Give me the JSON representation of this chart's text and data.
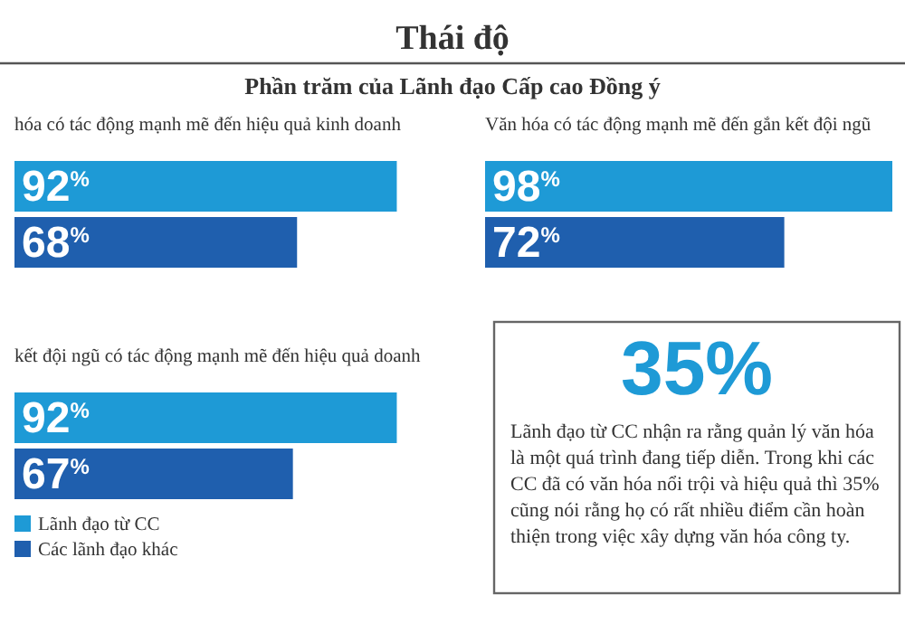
{
  "chart_data": [
    {
      "type": "other",
      "title": "Thái độ",
      "subtitle": "Phần trăm của Lãnh đạo Cấp cao Đồng ý"
    },
    {
      "type": "bar",
      "orientation": "horizontal",
      "title": "hóa có tác động mạnh mẽ đến hiệu quả kinh doanh",
      "categories": [
        null
      ],
      "tick_labels": false,
      "series": [
        {
          "color": "#1e9ad6",
          "values": [
            92
          ],
          "value_labels": [
            "92$^{%}$"
          ]
        },
        {
          "color": "#1f5fae",
          "values": [
            68
          ],
          "value_labels": [
            "68$^{%}$"
          ]
        }
      ]
    },
    {
      "type": "bar",
      "orientation": "horizontal",
      "title": "Văn hóa có tác động mạnh mẽ đến gắn kết đội ngũ",
      "categories": [
        null
      ],
      "tick_labels": false,
      "series": [
        {
          "color": "#1e9ad6",
          "values": [
            98
          ],
          "value_labels": [
            "98$^{%}$"
          ]
        },
        {
          "color": "#1f5fae",
          "values": [
            72
          ],
          "value_labels": [
            "72$^{%}$"
          ]
        }
      ]
    },
    {
      "type": "bar",
      "orientation": "horizontal",
      "title": "kết đội ngũ có tác động mạnh mẽ đến hiệu quả doanh",
      "categories": [
        null
      ],
      "tick_labels": false,
      "legend": "bottom",
      "series": [
        {
          "name": "Lãnh đạo từ CC",
          "color": "#1e9ad6",
          "values": [
            92
          ],
          "value_labels": [
            "92$^{%}$"
          ]
        },
        {
          "name": "Các lãnh đạo khác",
          "color": "#1f5fae",
          "values": [
            67
          ],
          "value_labels": [
            "67$^{%}$"
          ]
        }
      ]
    },
    {
      "type": "other",
      "title": "35%",
      "annotations": [
        "Lãnh đạo từ CC nhận ra rằng quản lý văn hóa là một quá trình đang tiếp diễn. Trong khi các CC đã có văn hóa nổi trội và hiệu quả thì 35% cũng nói rằng họ có rất nhiều điểm cần hoàn thiện trong việc xây dựng văn hóa công ty."
      ]
    }
  ]
}
